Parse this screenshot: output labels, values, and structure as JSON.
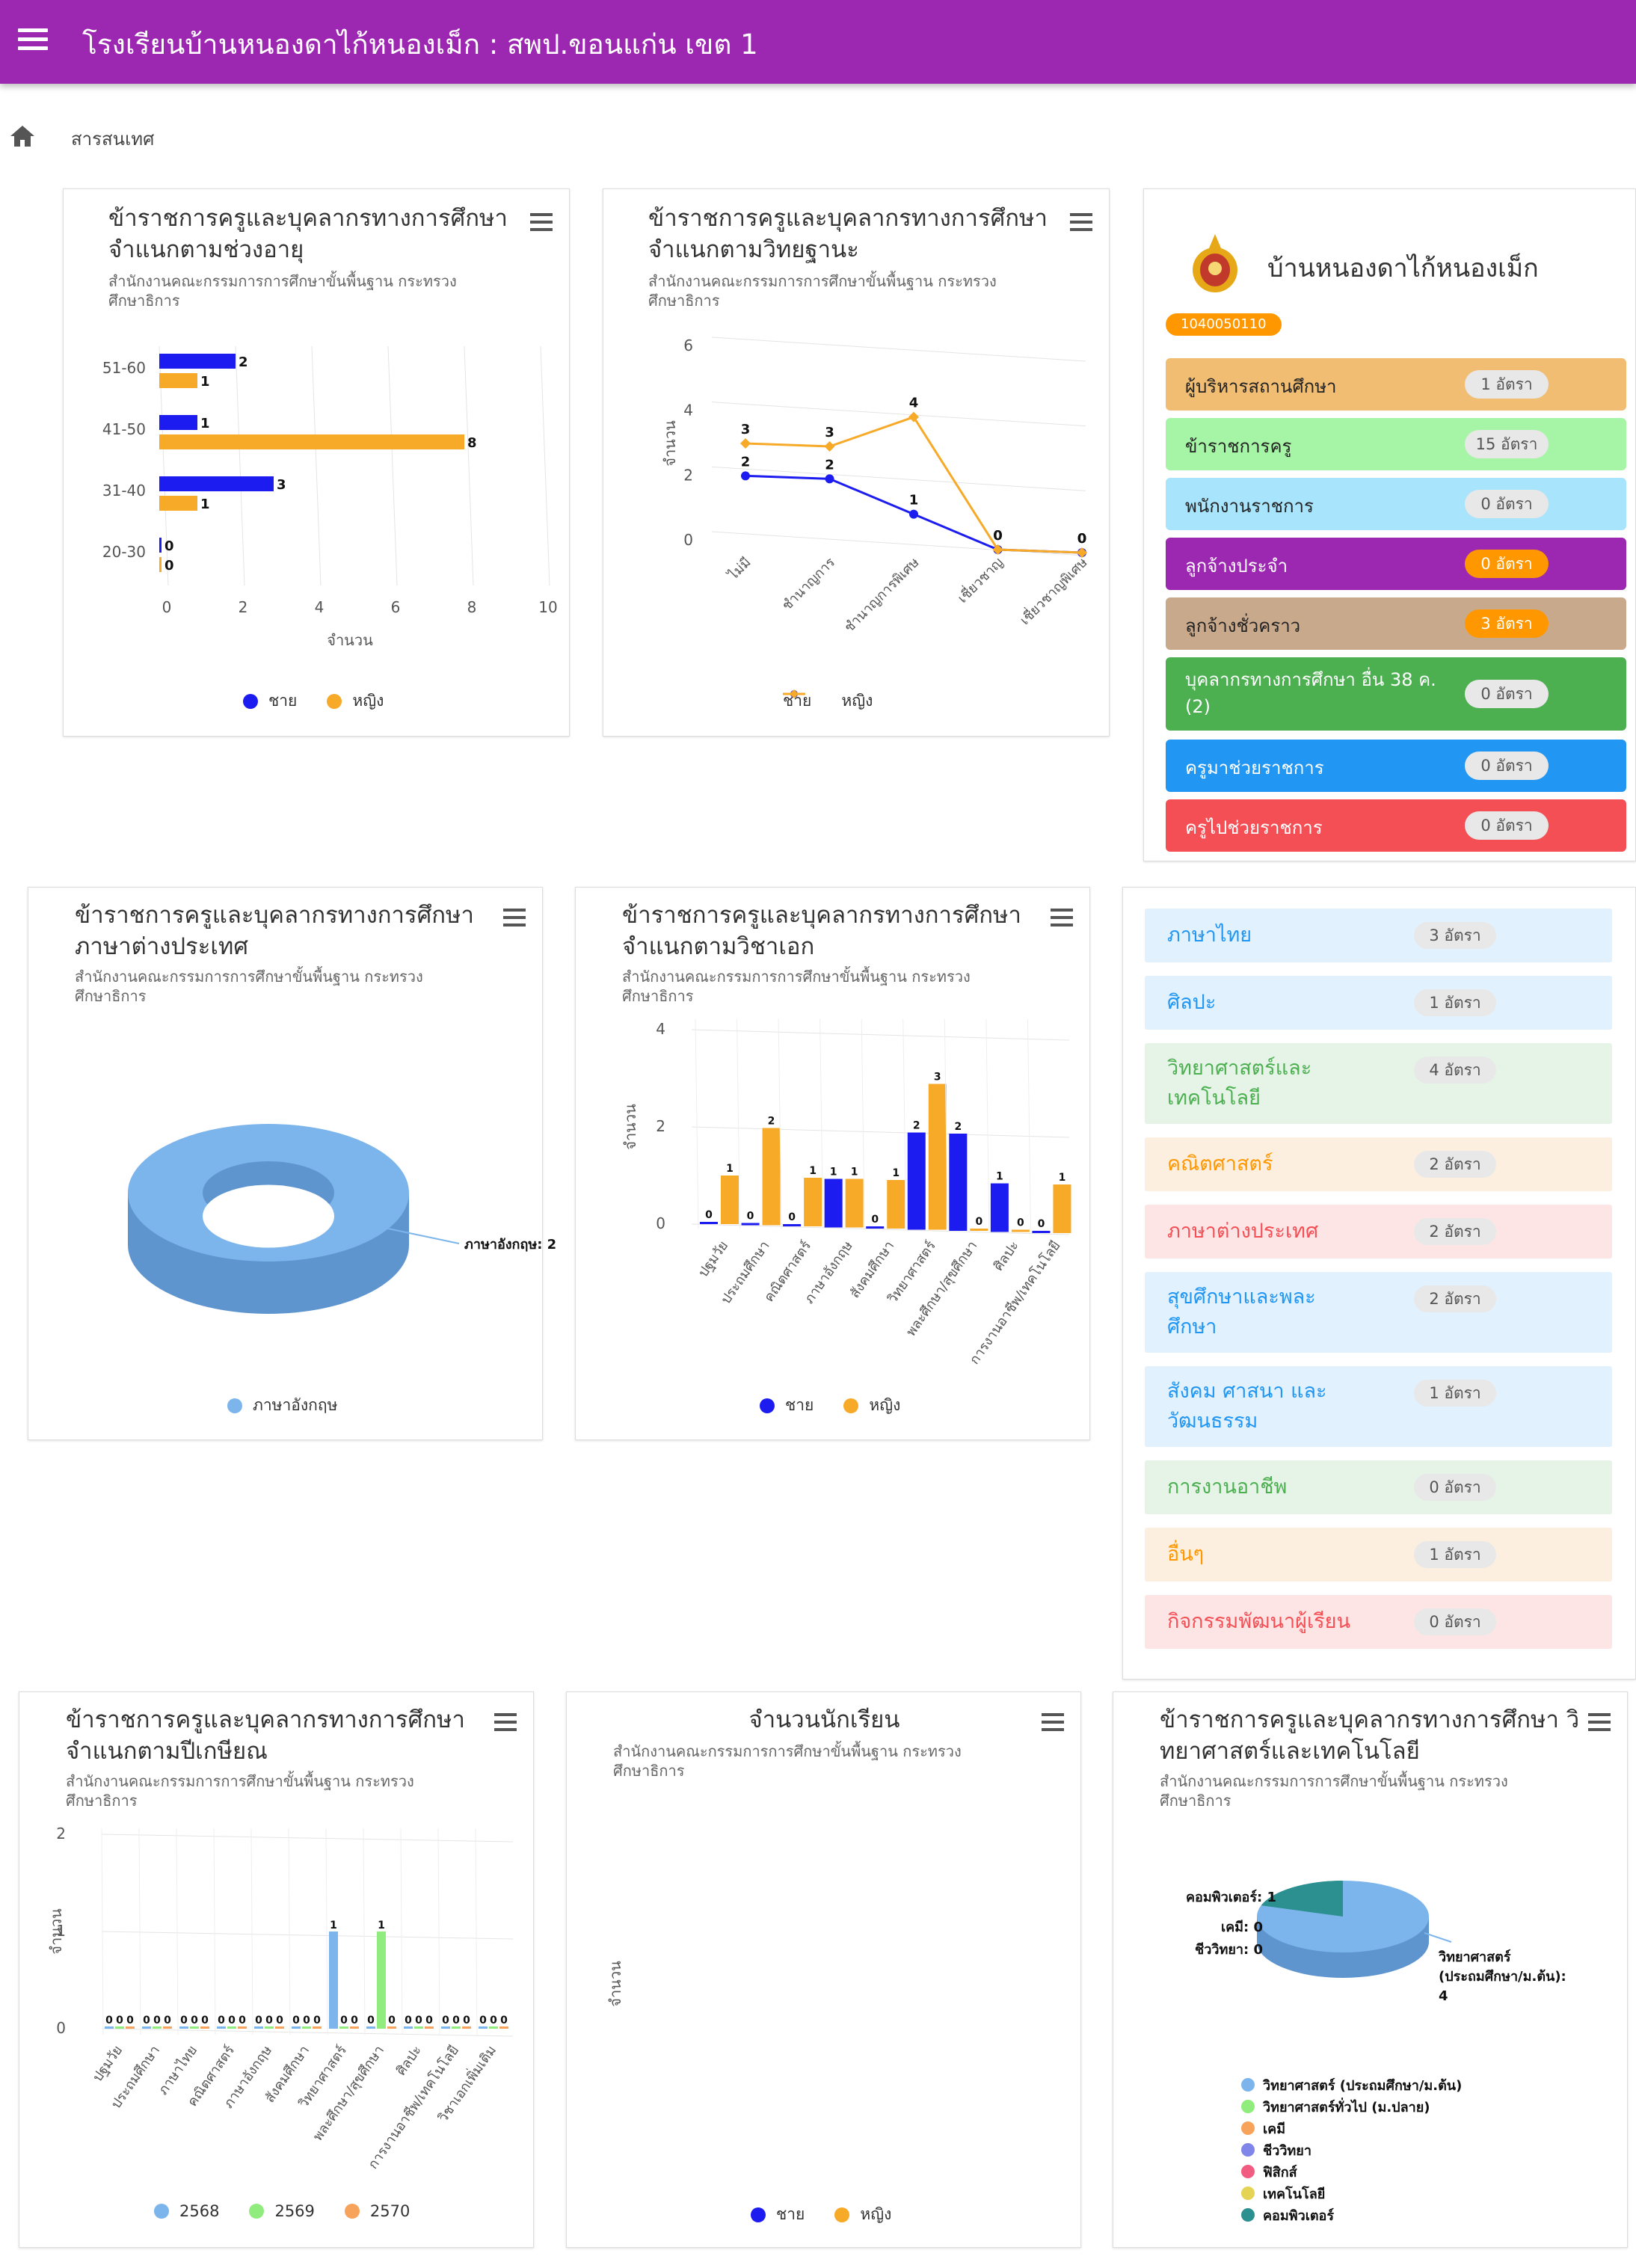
{
  "header": {
    "title": "โรงเรียนบ้านหนองดาไก้หนองเม็ก : สพป.ขอนแก่น เขต 1"
  },
  "breadcrumb": {
    "label": "สารสนเทศ"
  },
  "source_note": "สำนักงานคณะกรรมการการศึกษาขั้นพื้นฐาน กระทรวง ศึกษาธิการ",
  "axis_count": "จำนวน",
  "charts": {
    "age": {
      "title": "ข้าราชการครูและบุคลากรทางการศึกษา จำแนกตามช่วงอายุ"
    },
    "standing": {
      "title": "ข้าราชการครูและบุคลากรทางการศึกษา จำแนกตามวิทยฐานะ"
    },
    "language": {
      "title": "ข้าราชการครูและบุคลากรทางการศึกษา ภาษาต่างประเทศ"
    },
    "major": {
      "title": "ข้าราชการครูและบุคลากรทางการศึกษา จำแนกตามวิชาเอก"
    },
    "retire": {
      "title": "ข้าราชการครูและบุคลากรทางการศึกษา จำแนกตามปีเกษียณ"
    },
    "students": {
      "title": "จำนวนนักเรียน"
    },
    "science": {
      "title": "ข้าราชการครูและบุคลากรทางการศึกษา วิ ทยาศาสตร์และเทคโนโลยี"
    }
  },
  "school": {
    "name": "บ้านหนองดาไก้หนองเม็ก",
    "code": "1040050110"
  },
  "staff": [
    {
      "label": "ผู้บริหารสถานศึกษา",
      "count": "1 อัตรา",
      "color": "#f0bd73",
      "text": "#222",
      "pill": "#e8e8e8",
      "pilltext": "#555"
    },
    {
      "label": "ข้าราชการครู",
      "count": "15 อัตรา",
      "color": "#a6f5a6",
      "text": "#222",
      "pill": "#e8e8e8",
      "pilltext": "#555"
    },
    {
      "label": "พนักงานราชการ",
      "count": "0 อัตรา",
      "color": "#a8e4fb",
      "text": "#222",
      "pill": "#e8e8e8",
      "pilltext": "#555"
    },
    {
      "label": "ลูกจ้างประจำ",
      "count": "0 อัตรา",
      "color": "#9c27b0",
      "text": "#fff",
      "pill": "#ff9800",
      "pilltext": "#fff"
    },
    {
      "label": "ลูกจ้างชั่วคราว",
      "count": "3 อัตรา",
      "color": "#c9a98c",
      "text": "#222",
      "pill": "#ff9800",
      "pilltext": "#fff"
    },
    {
      "label": "บุคลากรทางการศึกษา อื่น 38 ค.(2)",
      "count": "0 อัตรา",
      "color": "#4caf50",
      "text": "#fff",
      "pill": "#e8e8e8",
      "pilltext": "#555"
    },
    {
      "label": "ครูมาช่วยราชการ",
      "count": "0 อัตรา",
      "color": "#2196f3",
      "text": "#fff",
      "pill": "#e8e8e8",
      "pilltext": "#555"
    },
    {
      "label": "ครูไปช่วยราชการ",
      "count": "0 อัตรา",
      "color": "#f44f55",
      "text": "#fff",
      "pill": "#e8e8e8",
      "pilltext": "#555"
    }
  ],
  "subjects": [
    {
      "label": "ภาษาไทย",
      "count": "3 อัตรา",
      "bg": "#e1f1fd",
      "fg": "#2196f3"
    },
    {
      "label": "ศิลปะ",
      "count": "1 อัตรา",
      "bg": "#e1f1fd",
      "fg": "#2196f3"
    },
    {
      "label": "วิทยาศาสตร์และ เทคโนโลยี",
      "count": "4 อัตรา",
      "bg": "#e6f4e8",
      "fg": "#4caf50"
    },
    {
      "label": "คณิตศาสตร์",
      "count": "2 อัตรา",
      "bg": "#fdefdf",
      "fg": "#ff9800"
    },
    {
      "label": "ภาษาต่างประเทศ",
      "count": "2 อัตรา",
      "bg": "#fde5e6",
      "fg": "#f44f55"
    },
    {
      "label": "สุขศึกษาและพละ ศึกษา",
      "count": "2 อัตรา",
      "bg": "#e1f1fd",
      "fg": "#2196f3"
    },
    {
      "label": "สังคม ศาสนา และ วัฒนธรรม",
      "count": "1 อัตรา",
      "bg": "#e1f1fd",
      "fg": "#2196f3"
    },
    {
      "label": "การงานอาชีพ",
      "count": "0 อัตรา",
      "bg": "#e6f4e8",
      "fg": "#4caf50"
    },
    {
      "label": "อื่นๆ",
      "count": "1 อัตรา",
      "bg": "#fdefdf",
      "fg": "#ff9800"
    },
    {
      "label": "กิจกรรมพัฒนาผู้เรียน",
      "count": "0 อัตรา",
      "bg": "#fde5e6",
      "fg": "#f44f55"
    }
  ],
  "legend": {
    "male": "ชาย",
    "female": "หญิง",
    "y2568": "2568",
    "y2569": "2569",
    "y2570": "2570"
  },
  "colors": {
    "male": "#1c1cf0",
    "female": "#f7a928",
    "purple": "#9c27b0",
    "blue_light": "#7cb5ec",
    "green": "#90ed7d",
    "orange_light": "#f7a35c"
  },
  "chart_data": [
    {
      "type": "bar",
      "orientation": "horizontal",
      "categories": [
        "51-60",
        "41-50",
        "31-40",
        "20-30"
      ],
      "series": [
        {
          "name": "ชาย",
          "values": [
            2,
            1,
            3,
            0
          ]
        },
        {
          "name": "หญิง",
          "values": [
            1,
            8,
            1,
            0
          ]
        }
      ],
      "xlabel": "จำนวน",
      "xlim": [
        0,
        10
      ],
      "xticks": [
        "0",
        "2",
        "4",
        "6",
        "8",
        "10"
      ]
    },
    {
      "type": "line",
      "categories": [
        "ไม่มี",
        "ชำนาญการ",
        "ชำนาญการพิเศษ",
        "เชี่ยวชาญ",
        "เชี่ยวชาญพิเศษ"
      ],
      "series": [
        {
          "name": "ชาย",
          "values": [
            2,
            2,
            1,
            0,
            0
          ]
        },
        {
          "name": "หญิง",
          "values": [
            3,
            3,
            4,
            0,
            0
          ]
        }
      ],
      "ylabel": "จำนวน",
      "ylim": [
        0,
        6
      ],
      "yticks": [
        "0",
        "2",
        "4",
        "6"
      ]
    },
    {
      "type": "pie",
      "slices": [
        {
          "label": "ภาษาอังกฤษ",
          "value": 2,
          "callout": "ภาษาอังกฤษ: 2"
        }
      ]
    },
    {
      "type": "bar",
      "categories": [
        "ปฐมวัย",
        "ประถมศึกษา",
        "คณิตศาสตร์",
        "ภาษาอังกฤษ",
        "สังคมศึกษา",
        "วิทยาศาสตร์",
        "พละศึกษา/สุขศึกษา",
        "ศิลปะ",
        "การงานอาชีพ/เทคโนโลยี"
      ],
      "series": [
        {
          "name": "ชาย",
          "values": [
            0,
            0,
            0,
            1,
            0,
            2,
            2,
            1,
            0
          ]
        },
        {
          "name": "หญิง",
          "values": [
            1,
            2,
            1,
            1,
            1,
            3,
            0,
            0,
            1
          ]
        }
      ],
      "ylabel": "จำนวน",
      "ylim": [
        0,
        4
      ],
      "yticks": [
        "0",
        "2",
        "4"
      ]
    },
    {
      "type": "bar",
      "categories": [
        "ปฐมวัย",
        "ประถมศึกษา",
        "ภาษาไทย",
        "คณิตศาสตร์",
        "ภาษาอังกฤษ",
        "สังคมศึกษา",
        "วิทยาศาสตร์",
        "พละศึกษา/สุขศึกษา",
        "ศิลปะ",
        "การงานอาชีพ/เทคโนโลยี",
        "วิชาเอกเพิ่มเติม"
      ],
      "series": [
        {
          "name": "2568",
          "values": [
            0,
            0,
            0,
            0,
            0,
            0,
            1,
            0,
            0,
            0,
            0
          ]
        },
        {
          "name": "2569",
          "values": [
            0,
            0,
            0,
            0,
            0,
            0,
            0,
            1,
            0,
            0,
            0
          ]
        },
        {
          "name": "2570",
          "values": [
            0,
            0,
            0,
            0,
            0,
            0,
            0,
            0,
            0,
            0,
            0
          ]
        }
      ],
      "ylabel": "จำนวน",
      "ylim": [
        0,
        2
      ],
      "yticks": [
        "0",
        "1",
        "2"
      ]
    },
    {
      "type": "bar",
      "categories": [],
      "series": [
        {
          "name": "ชาย",
          "values": []
        },
        {
          "name": "หญิง",
          "values": []
        }
      ],
      "ylabel": "จำนวน"
    },
    {
      "type": "pie",
      "slices": [
        {
          "label": "วิทยาศาสตร์ (ประถมศึกษา/ม.ต้น)",
          "value": 4,
          "callout": "วิทยาศาสตร์ (ประถมศึกษา/ม.ต้น): 4"
        },
        {
          "label": "วิทยาศาสตร์ทั่วไป (ม.ปลาย)",
          "value": 0
        },
        {
          "label": "เคมี",
          "value": 0,
          "callout": "เคมี: 0"
        },
        {
          "label": "ชีววิทยา",
          "value": 0,
          "callout": "ชีววิทยา: 0"
        },
        {
          "label": "ฟิสิกส์",
          "value": 0
        },
        {
          "label": "เทคโนโลยี",
          "value": 0
        },
        {
          "label": "คอมพิวเตอร์",
          "value": 1,
          "callout": "คอมพิวเตอร์: 1"
        }
      ],
      "legend_colors": [
        "#7cb5ec",
        "#90ed7d",
        "#f7a35c",
        "#8085e9",
        "#f15c80",
        "#e4d354",
        "#2b908f"
      ]
    }
  ]
}
